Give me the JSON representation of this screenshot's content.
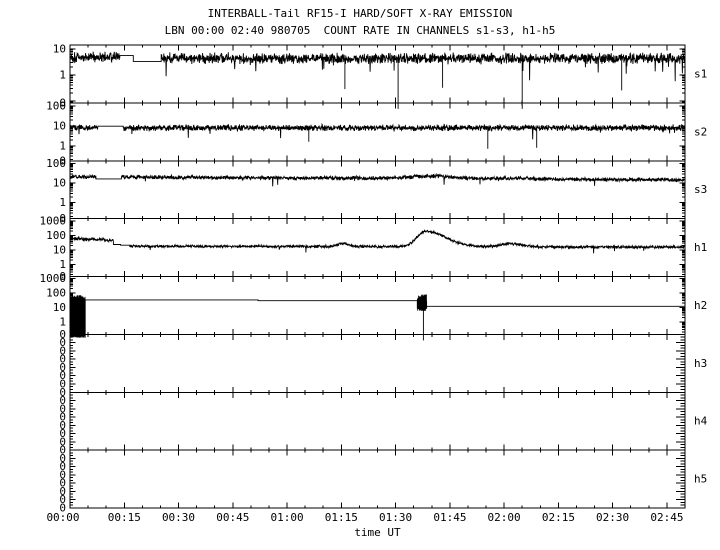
{
  "title": "INTERBALL-Tail RF15-I HARD/SOFT X-RAY EMISSION",
  "subtitle": "LBN 00:00 02:40 980705  COUNT RATE IN CHANNELS s1-s3, h1-h5",
  "xlabel": "time UT",
  "colors": {
    "foreground": "#000000",
    "background": "#ffffff"
  },
  "chart_data": {
    "type": "line",
    "title": "INTERBALL-Tail RF15-I HARD/SOFT X-RAY EMISSION",
    "subtitle": "LBN 00:00 02:40 980705  COUNT RATE IN CHANNELS s1-s3, h1-h5",
    "xlabel": "time UT",
    "y_scale": "log",
    "grid": false,
    "x_axis": {
      "range_minutes": [
        0,
        170
      ],
      "major_tick_minutes": 15,
      "minor_tick_minutes": 5,
      "tick_labels": [
        "00:00",
        "00:15",
        "00:30",
        "00:45",
        "01:00",
        "01:15",
        "01:30",
        "01:45",
        "02:00",
        "02:15",
        "02:30",
        "02:45"
      ]
    },
    "panels": [
      {
        "label": "s1",
        "log_top": 1.15,
        "log_bottom": -1.08,
        "ytick_labels": [
          {
            "exp": 1,
            "text": "10"
          },
          {
            "exp": 0,
            "text": "1"
          }
        ],
        "bottom_label": "0",
        "segments": [
          {
            "type": "noise",
            "t0": 0,
            "t1": 13.8,
            "level": 0.68,
            "amp": 0.2,
            "spike_prob": 0.012,
            "spike_depth": 0.55
          },
          {
            "type": "flat",
            "t0": 13.8,
            "t1": 17.5,
            "level": 0.74
          },
          {
            "type": "flat",
            "t0": 17.5,
            "t1": 25.2,
            "level": 0.52
          },
          {
            "type": "noise",
            "t0": 25.2,
            "t1": 170,
            "level": 0.64,
            "amp": 0.2,
            "spike_prob": 0.012,
            "spike_depth": 0.55,
            "deep_spikes": [
              {
                "t": 76,
                "v": -0.55
              },
              {
                "t": 90.7,
                "v": -1.35
              },
              {
                "t": 103,
                "v": -0.5
              },
              {
                "t": 125,
                "v": -1.4
              },
              {
                "t": 152.5,
                "v": -0.6
              }
            ]
          }
        ]
      },
      {
        "label": "s2",
        "log_top": 2.15,
        "log_bottom": -0.75,
        "ytick_labels": [
          {
            "exp": 2,
            "text": "100"
          },
          {
            "exp": 1,
            "text": "10"
          },
          {
            "exp": 0,
            "text": "1"
          }
        ],
        "bottom_label": "0",
        "segments": [
          {
            "type": "noise",
            "t0": 0,
            "t1": 7.8,
            "level": 0.92,
            "amp": 0.15,
            "spike_prob": 0.008,
            "spike_depth": 0.45
          },
          {
            "type": "flat",
            "t0": 7.8,
            "t1": 14.7,
            "level": 0.98
          },
          {
            "type": "noise",
            "t0": 14.7,
            "t1": 170,
            "level": 0.9,
            "amp": 0.15,
            "spike_prob": 0.008,
            "spike_depth": 0.45,
            "deep_spikes": [
              {
                "t": 66,
                "v": 0.2
              },
              {
                "t": 115.5,
                "v": -0.15
              },
              {
                "t": 129,
                "v": -0.1
              }
            ]
          }
        ]
      },
      {
        "label": "s3",
        "log_top": 2.15,
        "log_bottom": -0.82,
        "ytick_labels": [
          {
            "exp": 2,
            "text": "100"
          },
          {
            "exp": 1,
            "text": "10"
          },
          {
            "exp": 0,
            "text": "1"
          }
        ],
        "bottom_label": "0",
        "segments": [
          {
            "type": "noise",
            "t0": 0,
            "t1": 7.2,
            "level": 1.33,
            "amp": 0.1
          },
          {
            "type": "flat",
            "t0": 7.2,
            "t1": 14.2,
            "level": 1.22
          },
          {
            "type": "noise",
            "t0": 14.2,
            "t1": 170,
            "level": 1.31,
            "level_end": 1.17,
            "amp": 0.1,
            "spike_prob": 0.004,
            "spike_depth": 0.3,
            "bumps": [
              {
                "c": 100,
                "s": 6,
                "a": 0.13
              },
              {
                "c": 122,
                "s": 5,
                "a": 0.05
              }
            ]
          }
        ]
      },
      {
        "label": "h1",
        "log_top": 3.17,
        "log_bottom": -0.83,
        "ytick_labels": [
          {
            "exp": 3,
            "text": "1000"
          },
          {
            "exp": 2,
            "text": "100"
          },
          {
            "exp": 1,
            "text": "10"
          },
          {
            "exp": 0,
            "text": "1"
          }
        ],
        "bottom_label": "0",
        "segments": [
          {
            "type": "noise",
            "t0": 0,
            "t1": 12,
            "level": 1.78,
            "level_end": 1.68,
            "amp": 0.11
          },
          {
            "type": "flat",
            "t0": 12,
            "t1": 14,
            "level": 1.38
          },
          {
            "type": "flat",
            "t0": 14,
            "t1": 16.5,
            "level": 1.33
          },
          {
            "type": "noise",
            "t0": 16.5,
            "t1": 170,
            "level": 1.27,
            "level_end": 1.2,
            "amp": 0.09,
            "spike_prob": 0.003,
            "spike_depth": 0.35,
            "bumps": [
              {
                "c": 75.5,
                "s": 1.4,
                "a": 0.22
              },
              {
                "c": 98.3,
                "s_left": 2.4,
                "s_right": 5.5,
                "a": 1.06
              },
              {
                "c": 122,
                "s": 3,
                "a": 0.22
              }
            ]
          }
        ]
      },
      {
        "label": "h2",
        "log_top": 3.14,
        "log_bottom": -0.86,
        "ytick_labels": [
          {
            "exp": 3,
            "text": "1000"
          },
          {
            "exp": 2,
            "text": "100"
          },
          {
            "exp": 1,
            "text": "10"
          },
          {
            "exp": 0,
            "text": "1"
          }
        ],
        "bottom_label": "0",
        "segments": [
          {
            "type": "block",
            "t0": 0,
            "t1": 4.2,
            "top": 1.85,
            "bottom": -1.1,
            "jitter": 0.18
          },
          {
            "type": "flat",
            "t0": 4.2,
            "t1": 52,
            "level": 1.52
          },
          {
            "type": "flat",
            "t0": 52,
            "t1": 96,
            "level": 1.47
          },
          {
            "type": "block",
            "t0": 96,
            "t1": 98.6,
            "top": 1.9,
            "bottom": 0.75,
            "jitter": 0.25,
            "down_spikes": [
              {
                "t": 97.7,
                "v": -1.6
              }
            ]
          },
          {
            "type": "flat",
            "t0": 98.6,
            "t1": 170,
            "level": 1.08
          }
        ]
      },
      {
        "label": "h3",
        "empty": true,
        "zero_label_text": "0",
        "zero_labels": 7,
        "segments": []
      },
      {
        "label": "h4",
        "empty": true,
        "zero_label_text": "0",
        "zero_labels": 7,
        "segments": []
      },
      {
        "label": "h5",
        "empty": true,
        "zero_label_text": "0",
        "zero_labels": 7,
        "segments": []
      }
    ]
  }
}
